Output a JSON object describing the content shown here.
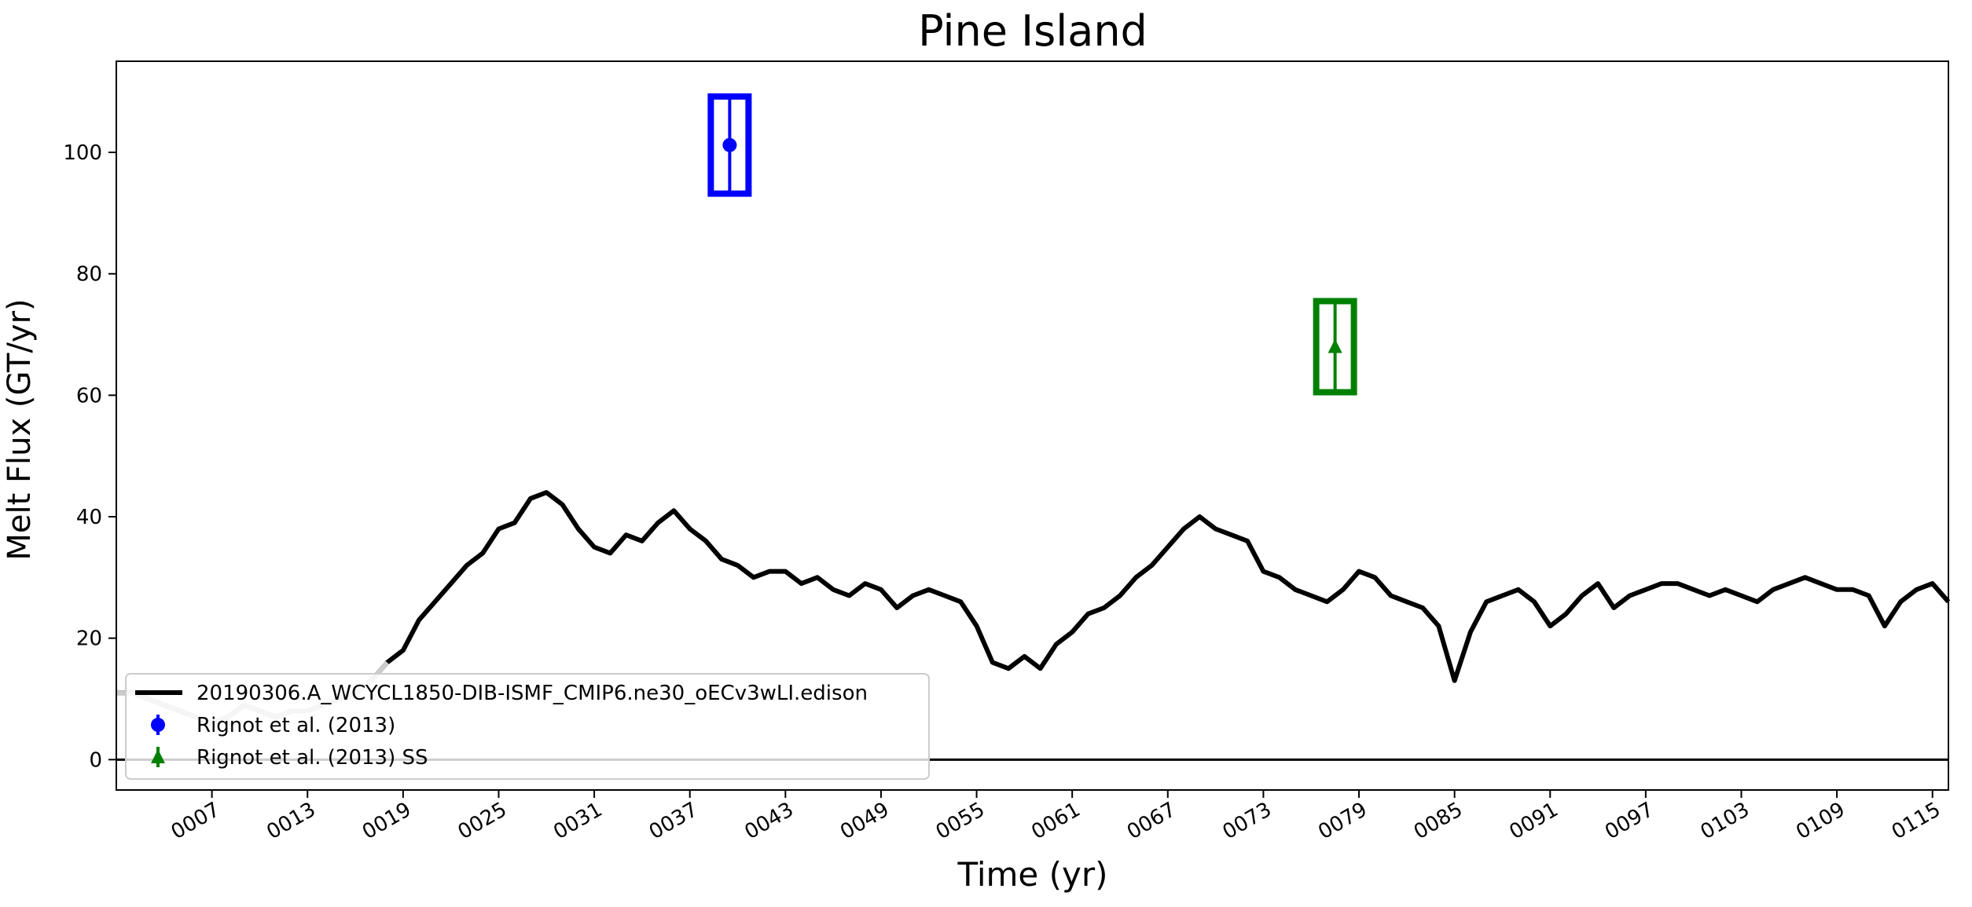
{
  "chart_data": {
    "type": "line",
    "title": "Pine Island",
    "xlabel": "Time (yr)",
    "ylabel": "Melt Flux (GT/yr)",
    "xlim": [
      1,
      116
    ],
    "ylim": [
      -5,
      115
    ],
    "xticks": [
      7,
      13,
      19,
      25,
      31,
      37,
      43,
      49,
      55,
      61,
      67,
      73,
      79,
      85,
      91,
      97,
      103,
      109,
      115
    ],
    "xtick_labels": [
      "0007",
      "0013",
      "0019",
      "0025",
      "0031",
      "0037",
      "0043",
      "0049",
      "0055",
      "0061",
      "0067",
      "0073",
      "0079",
      "0085",
      "0091",
      "0097",
      "0103",
      "0109",
      "0115"
    ],
    "yticks": [
      0,
      20,
      40,
      60,
      80,
      100
    ],
    "ytick_labels": [
      "0",
      "20",
      "40",
      "60",
      "80",
      "100"
    ],
    "zero_line": 0,
    "series": [
      {
        "name": "20190306.A_WCYCL1850-DIB-ISMF_CMIP6.ne30_oECv3wLI.edison",
        "color": "#000000",
        "x": [
          1,
          2,
          3,
          4,
          5,
          6,
          7,
          8,
          9,
          10,
          11,
          12,
          13,
          14,
          15,
          16,
          17,
          18,
          19,
          20,
          21,
          22,
          23,
          24,
          25,
          26,
          27,
          28,
          29,
          30,
          31,
          32,
          33,
          34,
          35,
          36,
          37,
          38,
          39,
          40,
          41,
          42,
          43,
          44,
          45,
          46,
          47,
          48,
          49,
          50,
          51,
          52,
          53,
          54,
          55,
          56,
          57,
          58,
          59,
          60,
          61,
          62,
          63,
          64,
          65,
          66,
          67,
          68,
          69,
          70,
          71,
          72,
          73,
          74,
          75,
          76,
          77,
          78,
          79,
          80,
          81,
          82,
          83,
          84,
          85,
          86,
          87,
          88,
          89,
          90,
          91,
          92,
          93,
          94,
          95,
          96,
          97,
          98,
          99,
          100,
          101,
          102,
          103,
          104,
          105,
          106,
          107,
          108,
          109,
          110,
          111,
          112,
          113,
          114,
          115,
          116
        ],
        "y": [
          11,
          11,
          10,
          9,
          8,
          7,
          6,
          7,
          9,
          8,
          7,
          8,
          8,
          9,
          10,
          11,
          13,
          16,
          18,
          23,
          26,
          29,
          32,
          34,
          38,
          39,
          43,
          44,
          42,
          38,
          35,
          34,
          37,
          36,
          39,
          41,
          38,
          36,
          33,
          32,
          30,
          31,
          31,
          29,
          30,
          28,
          27,
          29,
          28,
          25,
          27,
          28,
          27,
          26,
          22,
          16,
          15,
          17,
          15,
          19,
          21,
          24,
          25,
          27,
          30,
          32,
          35,
          38,
          40,
          38,
          37,
          36,
          31,
          30,
          28,
          27,
          26,
          28,
          31,
          30,
          27,
          26,
          25,
          22,
          13,
          21,
          26,
          27,
          28,
          26,
          22,
          24,
          27,
          29,
          25,
          27,
          28,
          29,
          29,
          28,
          27,
          28,
          27,
          26,
          28,
          29,
          30,
          29,
          28,
          28,
          27,
          22,
          26,
          28,
          29,
          26
        ]
      }
    ],
    "early_overlay": {
      "color": "#cccccc",
      "x_range": [
        1,
        18
      ]
    },
    "observations": [
      {
        "name": "Rignot et al. (2013)",
        "color": "#0000ff",
        "marker": "circle",
        "x": 39.5,
        "y": 101.2,
        "y_low": 93.2,
        "y_high": 109.2
      },
      {
        "name": "Rignot et al. (2013) SS",
        "color": "#008000",
        "marker": "triangle",
        "x": 77.5,
        "y": 68,
        "y_low": 60.5,
        "y_high": 75.5
      }
    ],
    "legend_position": "lower-left"
  }
}
